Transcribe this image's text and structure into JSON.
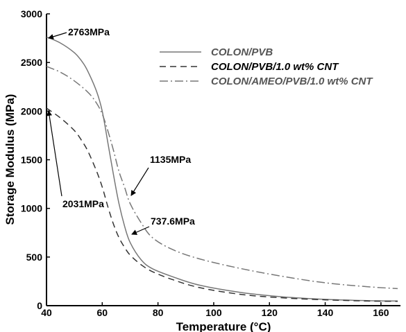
{
  "chart_data": {
    "type": "line",
    "title": "",
    "xlabel": "Temperature (°C)",
    "ylabel": "Storage Modulus (MPa)",
    "xlim": [
      40,
      167
    ],
    "ylim": [
      0,
      3000
    ],
    "xticks": [
      "40",
      "60",
      "80",
      "100",
      "120",
      "140",
      "160"
    ],
    "yticks": [
      "0",
      "500",
      "1000",
      "1500",
      "2000",
      "2500",
      "3000"
    ],
    "grid": false,
    "legend_position": "top-right",
    "series": [
      {
        "name": "COLON/PVB",
        "style": "solid",
        "color": "#777777",
        "x": [
          40,
          45,
          50,
          53,
          55,
          58,
          60,
          62,
          64,
          66,
          68,
          70,
          74,
          78,
          85,
          95,
          110,
          125,
          140,
          155,
          166
        ],
        "y": [
          2763,
          2700,
          2600,
          2500,
          2400,
          2200,
          2000,
          1680,
          1350,
          1050,
          820,
          650,
          470,
          380,
          300,
          210,
          135,
          90,
          65,
          52,
          48
        ]
      },
      {
        "name": "COLON/PVB/1.0 wt% CNT",
        "style": "dashed",
        "color": "#333333",
        "x": [
          40,
          45,
          50,
          53,
          55,
          58,
          60,
          62,
          64,
          66,
          68,
          70,
          74,
          78,
          85,
          95,
          110,
          125,
          140,
          155,
          166
        ],
        "y": [
          2031,
          1930,
          1800,
          1680,
          1580,
          1380,
          1220,
          1020,
          840,
          700,
          600,
          520,
          420,
          350,
          270,
          185,
          115,
          80,
          60,
          48,
          45
        ]
      },
      {
        "name": "COLON/AMEO/PVB/1.0 wt% CNT",
        "style": "dashdot",
        "color": "#777777",
        "x": [
          40,
          45,
          50,
          55,
          58,
          60,
          62,
          64,
          66,
          68,
          70,
          74,
          78,
          85,
          95,
          110,
          125,
          140,
          155,
          166
        ],
        "y": [
          2460,
          2400,
          2310,
          2190,
          2080,
          1970,
          1800,
          1600,
          1380,
          1220,
          1050,
          850,
          700,
          580,
          480,
          380,
          300,
          235,
          195,
          175
        ]
      }
    ],
    "annotations": [
      {
        "text": "2763MPa",
        "x": 40,
        "y": 2763
      },
      {
        "text": "2031MPa",
        "x": 40,
        "y": 2031
      },
      {
        "text": "1135MPa",
        "x": 70,
        "y": 1135
      },
      {
        "text": "737.6MPa",
        "x": 70,
        "y": 737.6
      }
    ]
  }
}
